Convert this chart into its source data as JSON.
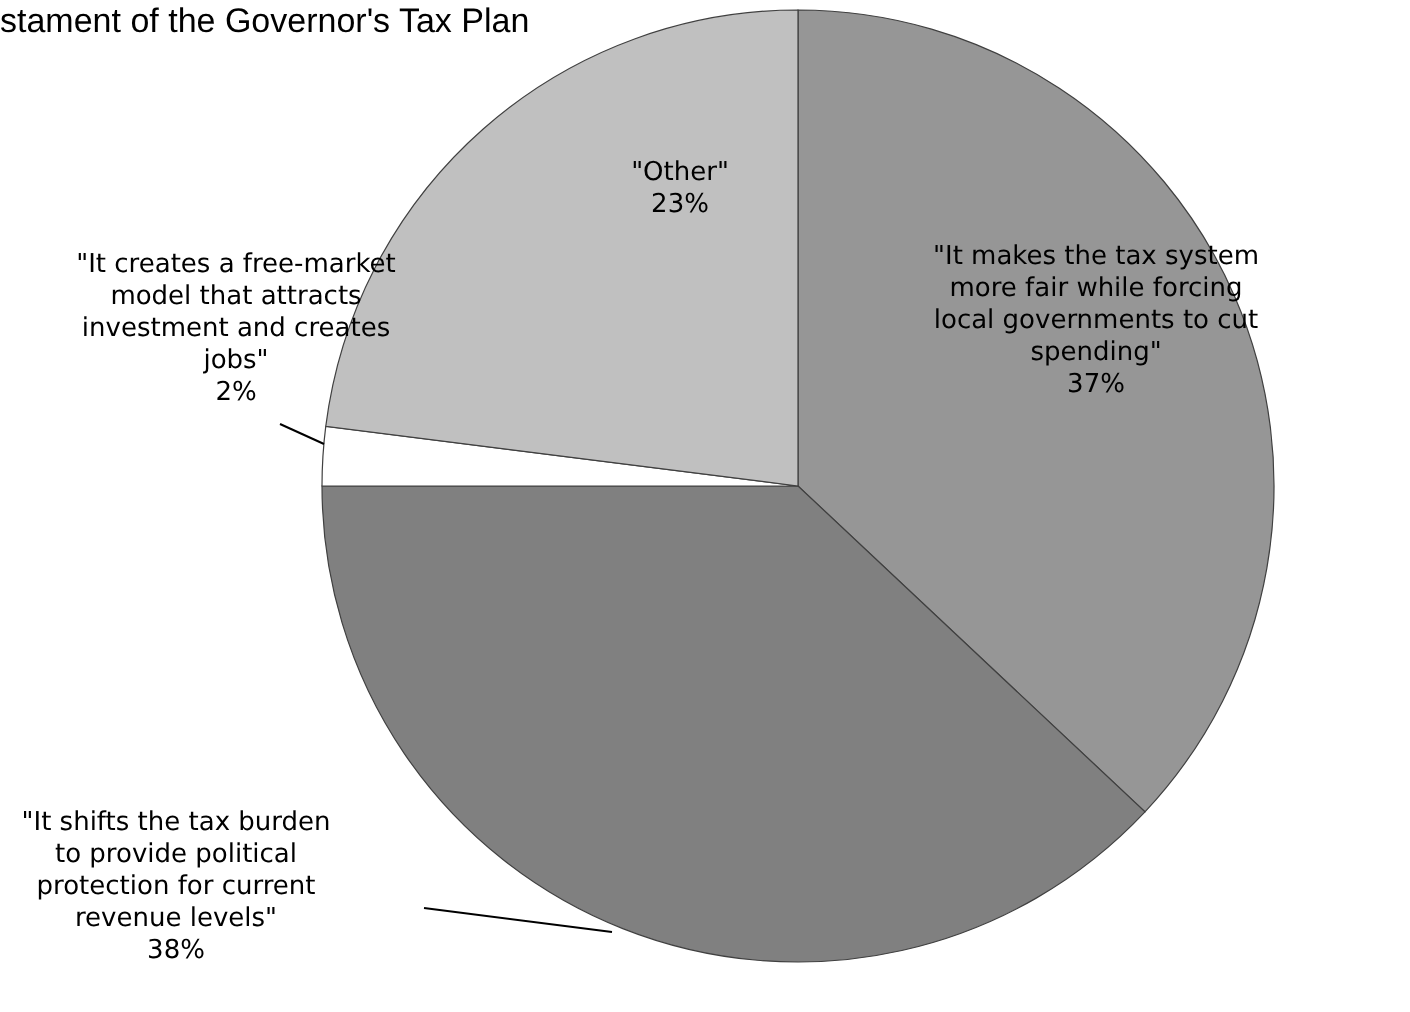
{
  "chart_data": {
    "type": "pie",
    "title": "stament of the Governor's Tax Plan",
    "categories": [
      "\"It makes the tax system more fair while forcing local governments to cut spending\"",
      "\"It shifts the tax burden to provide political protection for current revenue levels\"",
      "\"It creates a free-market model that attracts investment and creates jobs\"",
      "\"Other\""
    ],
    "values": [
      37,
      38,
      2,
      23
    ],
    "colors": [
      "#969696",
      "#808080",
      "#ffffff",
      "#c0c0c0"
    ],
    "value_labels": [
      "37%",
      "38%",
      "2%",
      "23%"
    ]
  }
}
